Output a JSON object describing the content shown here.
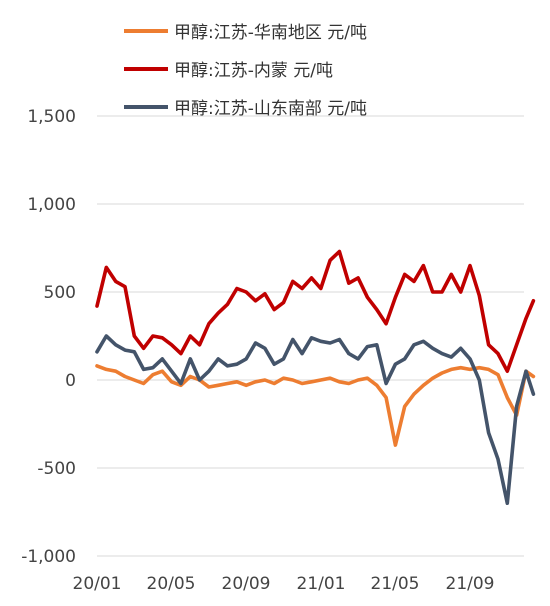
{
  "chart_data": {
    "type": "line",
    "title": "",
    "xlabel": "",
    "ylabel": "",
    "ylim": [
      -1000,
      1500
    ],
    "yticks": [
      -1000,
      -500,
      0,
      500,
      1000,
      1500
    ],
    "ytick_labels": [
      "-1,000",
      "-500",
      "0",
      "500",
      "1,000",
      "1,500"
    ],
    "xticks": [
      0,
      4,
      8,
      12,
      16,
      20
    ],
    "xtick_labels": [
      "20/01",
      "20/05",
      "20/09",
      "21/01",
      "21/05",
      "21/09"
    ],
    "xlim": [
      0,
      23.4
    ],
    "x_unit": "months since 2020-01",
    "grid": true,
    "legend_position": "top",
    "x": [
      0,
      0.5,
      1,
      1.5,
      2,
      2.5,
      3,
      3.5,
      4,
      4.5,
      5,
      5.5,
      6,
      6.5,
      7,
      7.5,
      8,
      8.5,
      9,
      9.5,
      10,
      10.5,
      11,
      11.5,
      12,
      12.5,
      13,
      13.5,
      14,
      14.5,
      15,
      15.5,
      16,
      16.5,
      17,
      17.5,
      18,
      18.5,
      19,
      19.5,
      20,
      20.5,
      21,
      21.5,
      22,
      22.5,
      23,
      23.4
    ],
    "series": [
      {
        "name": "甲醇:江苏-华南地区 元/吨",
        "color": "#ED7D31",
        "values": [
          80,
          60,
          50,
          20,
          0,
          -20,
          30,
          50,
          -10,
          -30,
          20,
          0,
          -40,
          -30,
          -20,
          -10,
          -30,
          -10,
          0,
          -20,
          10,
          0,
          -20,
          -10,
          0,
          10,
          -10,
          -20,
          0,
          10,
          -30,
          -100,
          -370,
          -150,
          -80,
          -30,
          10,
          40,
          60,
          70,
          60,
          70,
          60,
          30,
          -100,
          -200,
          50,
          20
        ]
      },
      {
        "name": "甲醇:江苏-内蒙 元/吨",
        "color": "#C00000",
        "values": [
          420,
          640,
          560,
          530,
          250,
          180,
          250,
          240,
          200,
          150,
          250,
          200,
          320,
          380,
          430,
          520,
          500,
          450,
          490,
          400,
          440,
          560,
          520,
          580,
          520,
          680,
          730,
          550,
          580,
          470,
          400,
          320,
          470,
          600,
          560,
          650,
          500,
          500,
          600,
          500,
          650,
          480,
          200,
          150,
          50,
          200,
          350,
          450
        ]
      },
      {
        "name": "甲醇:江苏-山东南部 元/吨",
        "color": "#44546A",
        "values": [
          160,
          250,
          200,
          170,
          160,
          60,
          70,
          120,
          50,
          -20,
          120,
          0,
          50,
          120,
          80,
          90,
          120,
          210,
          180,
          90,
          120,
          230,
          150,
          240,
          220,
          210,
          230,
          150,
          120,
          190,
          200,
          -20,
          90,
          120,
          200,
          220,
          180,
          150,
          130,
          180,
          120,
          0,
          -300,
          -450,
          -700,
          -150,
          50,
          -80
        ]
      }
    ]
  }
}
